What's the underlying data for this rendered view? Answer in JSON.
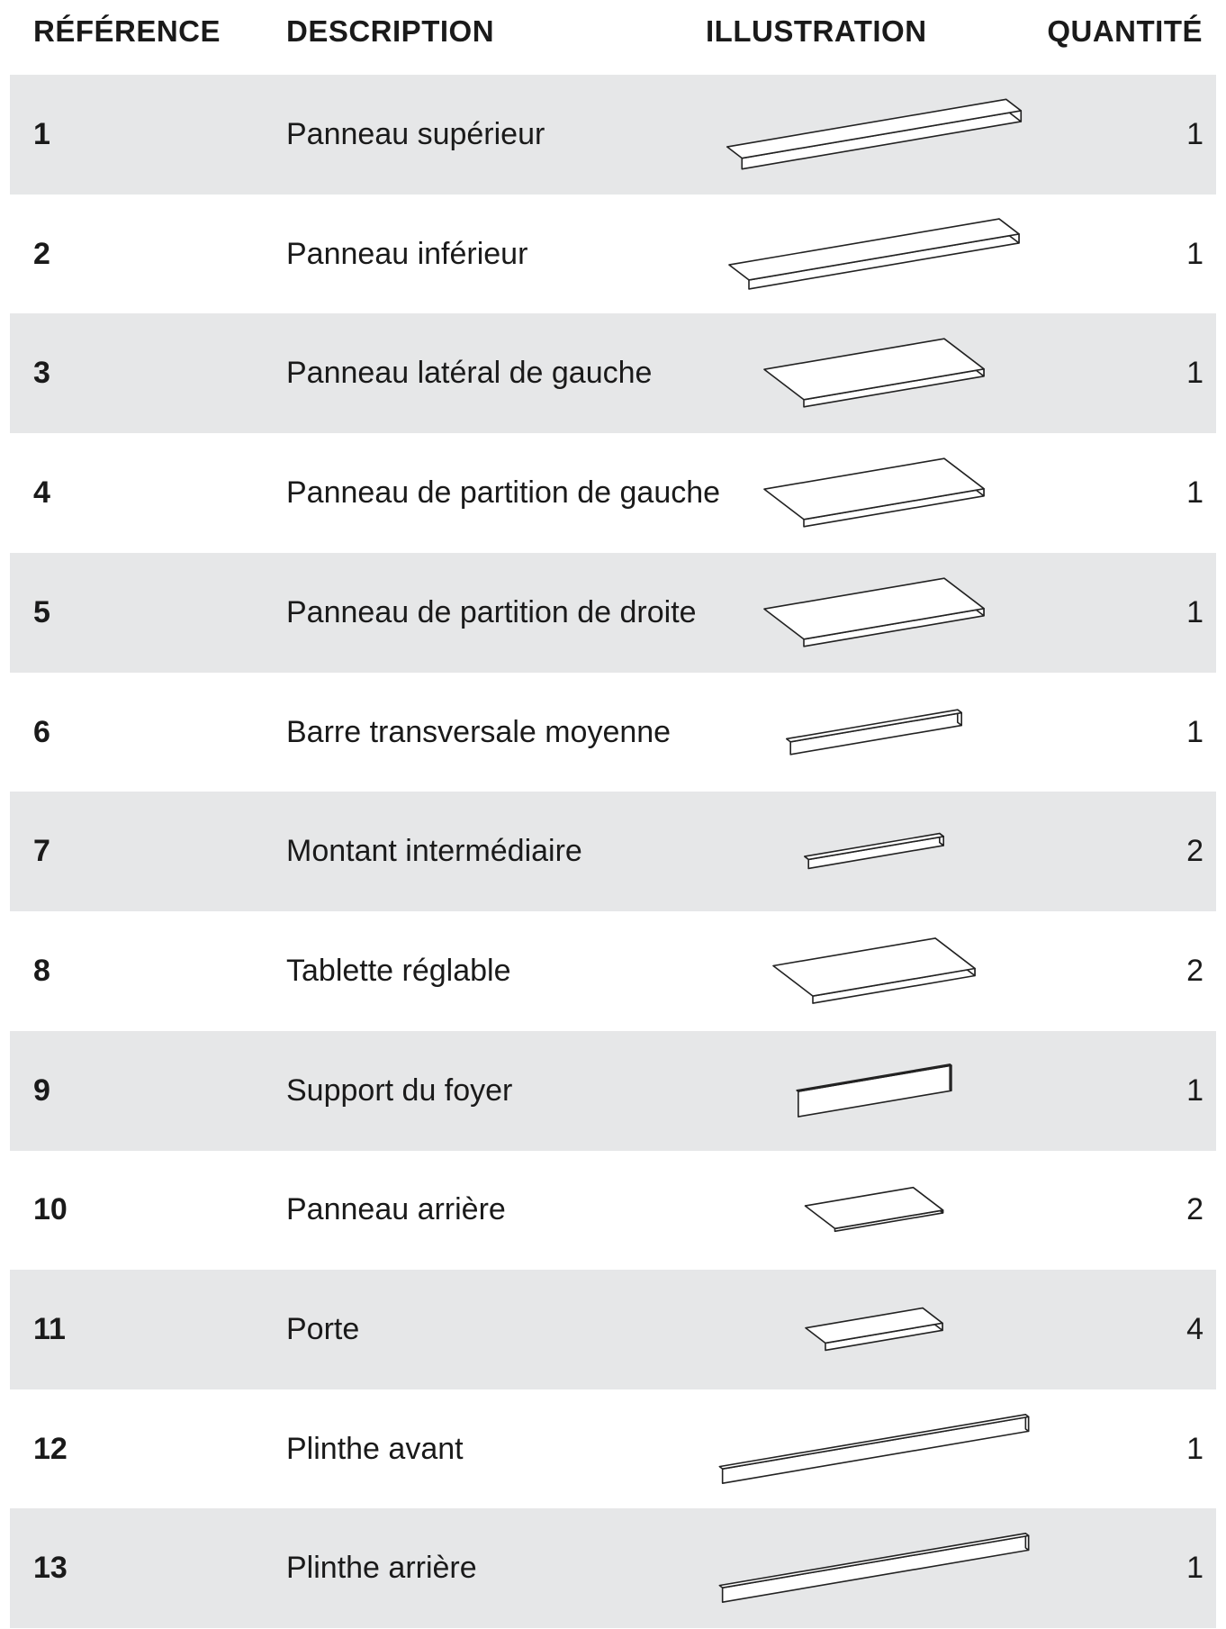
{
  "table": {
    "headers": [
      "RÉFÉRENCE",
      "DESCRIPTION",
      "ILLUSTRATION",
      "QUANTITÉ"
    ],
    "rows": [
      [
        "1",
        "Panneau supérieur",
        "1"
      ],
      [
        "2",
        "Panneau inférieur",
        "1"
      ],
      [
        "3",
        "Panneau latéral de gauche",
        "1"
      ],
      [
        "4",
        "Panneau de partition de gauche",
        "1"
      ],
      [
        "5",
        "Panneau de partition de droite",
        "1"
      ],
      [
        "6",
        "Barre transversale moyenne",
        "1"
      ],
      [
        "7",
        "Montant intermédiaire",
        "2"
      ],
      [
        "8",
        "Tablette réglable",
        "2"
      ],
      [
        "9",
        "Support du foyer",
        "1"
      ],
      [
        "10",
        "Panneau arrière",
        "2"
      ],
      [
        "11",
        "Porte",
        "4"
      ],
      [
        "12",
        "Plinthe avant",
        "1"
      ],
      [
        "13",
        "Plinthe arrière",
        "1"
      ]
    ]
  }
}
